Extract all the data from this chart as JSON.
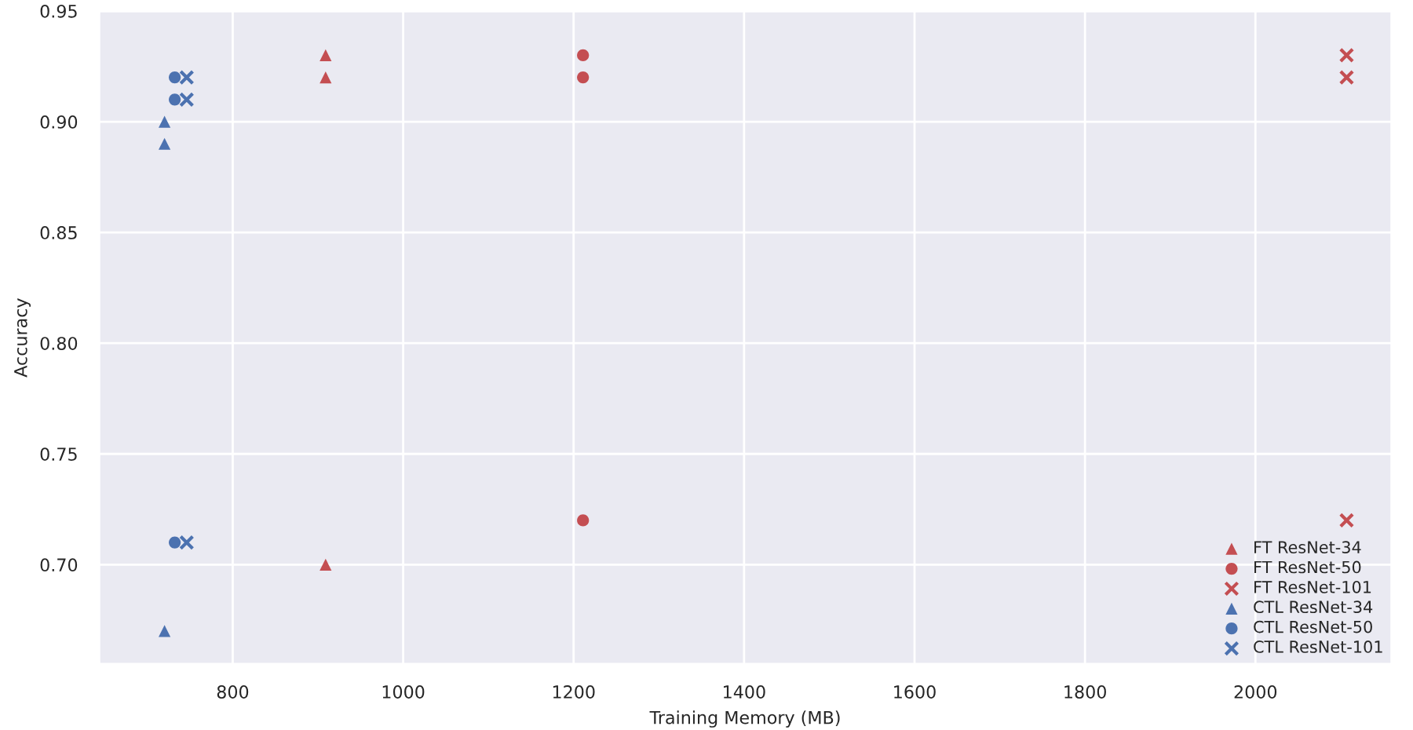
{
  "chart_data": {
    "type": "scatter",
    "xlabel": "Training Memory (MB)",
    "ylabel": "Accuracy",
    "xlim": [
      643,
      2160
    ],
    "ylim": [
      0.655,
      0.95
    ],
    "xticks": [
      800,
      1000,
      1200,
      1400,
      1600,
      1800,
      2000
    ],
    "yticks": [
      {
        "value": 0.7,
        "label": "0.70"
      },
      {
        "value": 0.75,
        "label": "0.75"
      },
      {
        "value": 0.8,
        "label": "0.80"
      },
      {
        "value": 0.85,
        "label": "0.85"
      },
      {
        "value": 0.9,
        "label": "0.90"
      },
      {
        "value": 0.95,
        "label": "0.95"
      }
    ],
    "grid": true,
    "legend": "bottom right",
    "series": [
      {
        "name": "FT ResNet-34",
        "color": "#c44e52",
        "marker": "triangle",
        "x": [
          909,
          909,
          909
        ],
        "values": [
          0.93,
          0.92,
          0.7
        ]
      },
      {
        "name": "FT ResNet-50",
        "color": "#c44e52",
        "marker": "circle",
        "x": [
          1211,
          1211,
          1211
        ],
        "values": [
          0.93,
          0.92,
          0.72
        ]
      },
      {
        "name": "FT ResNet-101",
        "color": "#c44e52",
        "marker": "cross",
        "x": [
          2107,
          2107,
          2107
        ],
        "values": [
          0.93,
          0.92,
          0.72
        ]
      },
      {
        "name": "CTL ResNet-34",
        "color": "#4c72b0",
        "marker": "triangle",
        "x": [
          720,
          720,
          720
        ],
        "values": [
          0.9,
          0.89,
          0.67
        ]
      },
      {
        "name": "CTL ResNet-50",
        "color": "#4c72b0",
        "marker": "circle",
        "x": [
          732,
          732,
          732
        ],
        "values": [
          0.92,
          0.91,
          0.71
        ]
      },
      {
        "name": "CTL ResNet-101",
        "color": "#4c72b0",
        "marker": "cross",
        "x": [
          746,
          746,
          746
        ],
        "values": [
          0.92,
          0.91,
          0.71
        ]
      }
    ]
  }
}
